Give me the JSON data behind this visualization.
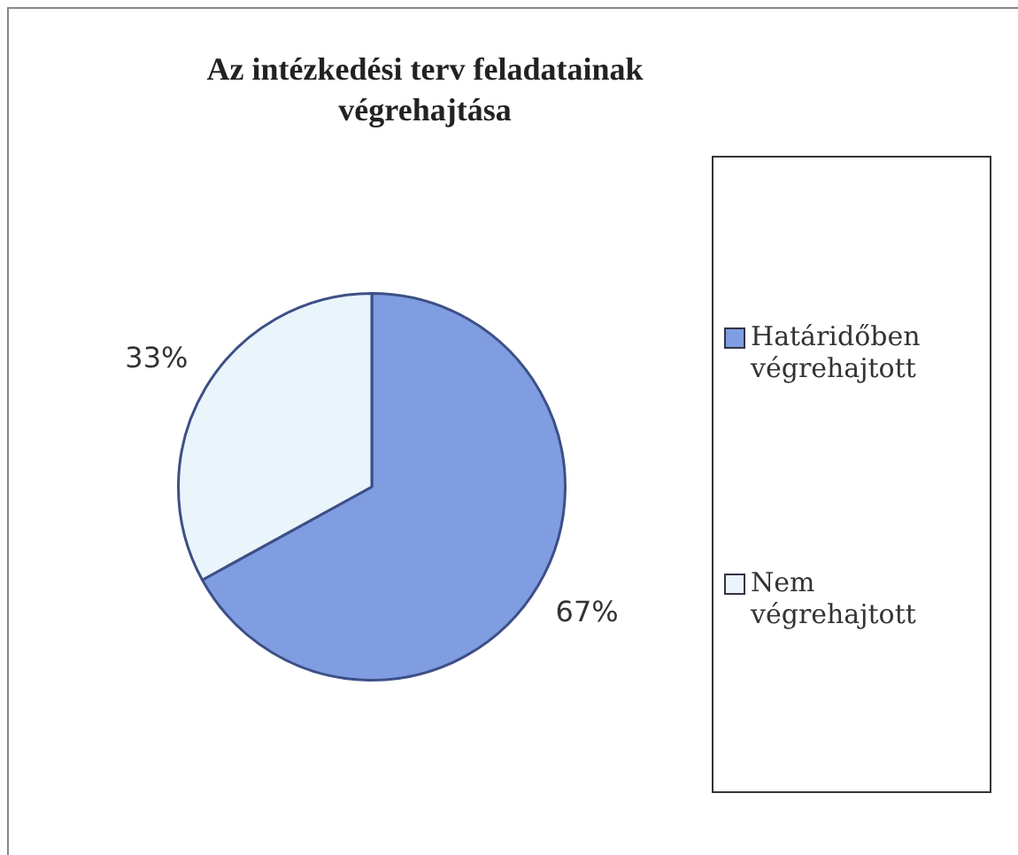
{
  "chart_data": {
    "type": "pie",
    "title": "Az intézkedési terv feladatainak végrehajtása",
    "categories": [
      "Határidőben végrehajtott",
      "Nem végrehajtott"
    ],
    "values": [
      67,
      33
    ],
    "value_labels": [
      "67%",
      "33%"
    ],
    "colors": [
      "#7f9de0",
      "#eaf4fb"
    ],
    "legend": "right"
  }
}
